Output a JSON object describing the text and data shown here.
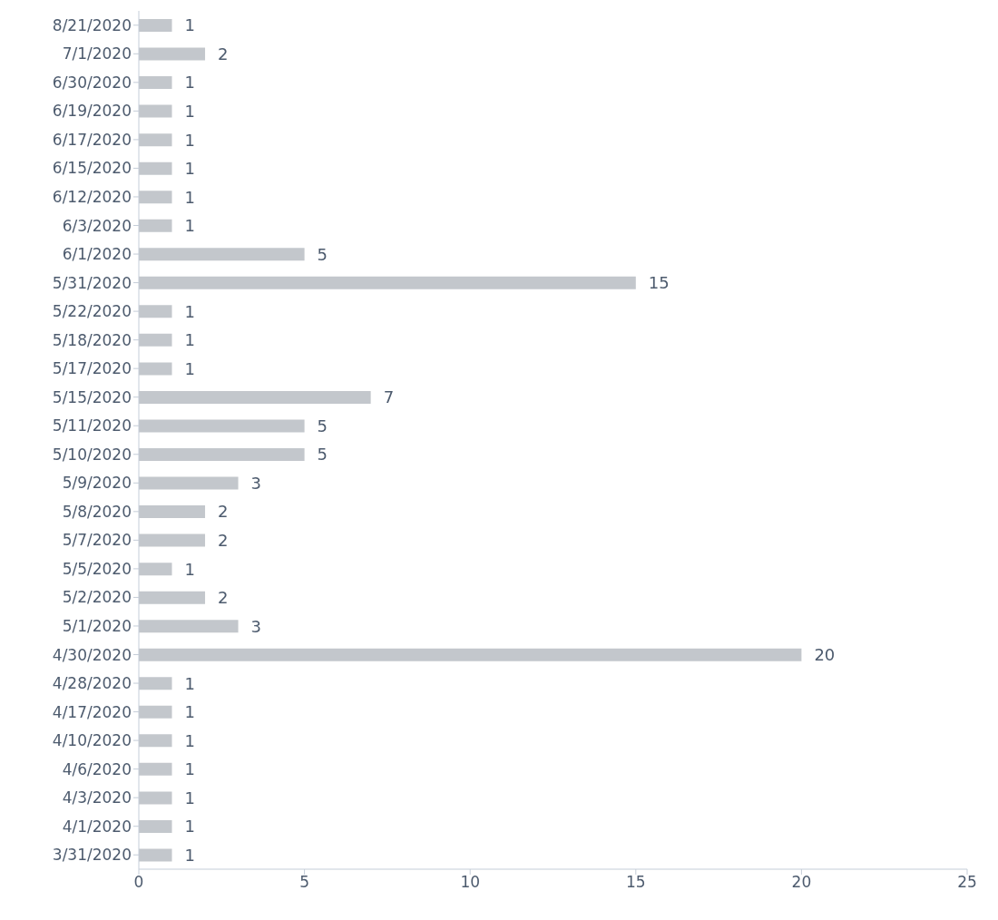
{
  "chart_data": {
    "type": "bar",
    "orientation": "horizontal",
    "categories": [
      "8/21/2020",
      "7/1/2020",
      "6/30/2020",
      "6/19/2020",
      "6/17/2020",
      "6/15/2020",
      "6/12/2020",
      "6/3/2020",
      "6/1/2020",
      "5/31/2020",
      "5/22/2020",
      "5/18/2020",
      "5/17/2020",
      "5/15/2020",
      "5/11/2020",
      "5/10/2020",
      "5/9/2020",
      "5/8/2020",
      "5/7/2020",
      "5/5/2020",
      "5/2/2020",
      "5/1/2020",
      "4/30/2020",
      "4/28/2020",
      "4/17/2020",
      "4/10/2020",
      "4/6/2020",
      "4/3/2020",
      "4/1/2020",
      "3/31/2020"
    ],
    "values": [
      1,
      2,
      1,
      1,
      1,
      1,
      1,
      1,
      5,
      15,
      1,
      1,
      1,
      7,
      5,
      5,
      3,
      2,
      2,
      1,
      2,
      3,
      20,
      1,
      1,
      1,
      1,
      1,
      1,
      1
    ],
    "color": "#c3c7cc",
    "xlim": [
      0,
      25
    ],
    "xticks": [
      0,
      5,
      10,
      15,
      20,
      25
    ],
    "data_labels": true
  }
}
